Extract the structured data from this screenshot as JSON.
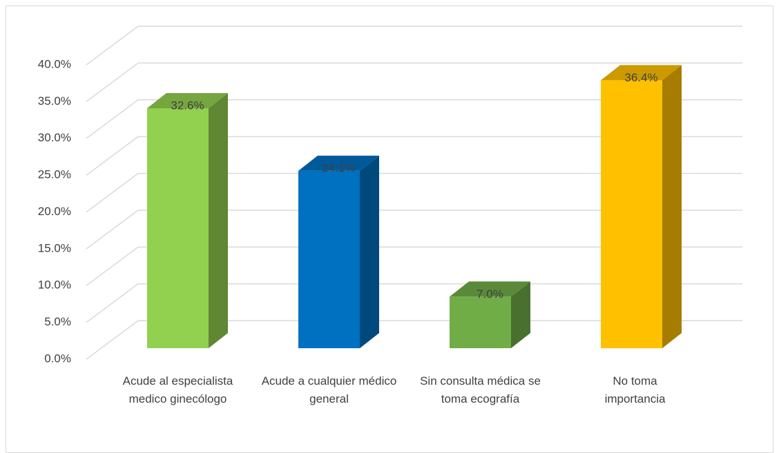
{
  "chart_data": {
    "type": "bar3d",
    "categories": [
      "Acude al especialista medico ginecólogo",
      "Acude a cualquier médico general",
      "Sin consulta médica se toma ecografía",
      "No toma importancia"
    ],
    "values": [
      32.6,
      24.1,
      7.0,
      36.4
    ],
    "value_labels": [
      "32.6%",
      "24.1%",
      "7.0%",
      "36.4%"
    ],
    "colors": [
      "#92d050",
      "#0070c0",
      "#70ad47",
      "#ffc000"
    ],
    "ylim": [
      0,
      40
    ],
    "yticks": [
      {
        "value": 0,
        "label": "0.0%"
      },
      {
        "value": 5,
        "label": "5.0%"
      },
      {
        "value": 10,
        "label": "10.0%"
      },
      {
        "value": 15,
        "label": "15.0%"
      },
      {
        "value": 20,
        "label": "20.0%"
      },
      {
        "value": 25,
        "label": "25.0%"
      },
      {
        "value": 30,
        "label": "30.0%"
      },
      {
        "value": 35,
        "label": "35.0%"
      },
      {
        "value": 40,
        "label": "40.0%"
      }
    ],
    "grid": true
  }
}
